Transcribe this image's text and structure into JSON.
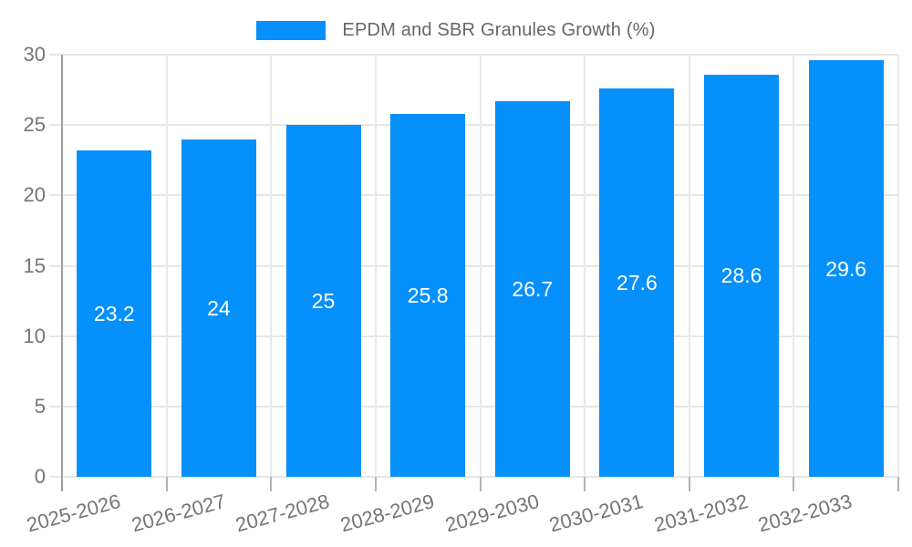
{
  "chart_data": {
    "type": "bar",
    "title": "EPDM and SBR Granules Growth (%)",
    "categories": [
      "2025-2026",
      "2026-2027",
      "2027-2028",
      "2028-2029",
      "2029-2030",
      "2030-2031",
      "2031-2032",
      "2032-2033"
    ],
    "values": [
      23.2,
      24,
      25,
      25.8,
      26.7,
      27.6,
      28.6,
      29.6
    ],
    "value_labels": [
      "23.2",
      "24",
      "25",
      "25.8",
      "26.7",
      "27.6",
      "28.6",
      "29.6"
    ],
    "xlabel": "",
    "ylabel": "",
    "ylim": [
      0,
      30
    ],
    "ytick_interval": 5,
    "yticks": [
      0,
      5,
      10,
      15,
      20,
      25,
      30
    ],
    "ytick_labels": [
      "0",
      "5",
      "10",
      "15",
      "20",
      "25",
      "30"
    ],
    "grid": true,
    "legend_position": "top",
    "xlabel_rotation_deg": -15,
    "bar_color": "#0590fb",
    "value_label_color": "#ffffff",
    "axis_text_color": "#757575",
    "gridline_color": "#e6e6e6",
    "axis_line_color": "#9e9e9e"
  },
  "legend": {
    "label": "EPDM and SBR Granules Growth (%)",
    "swatch_color": "#0590fb"
  }
}
